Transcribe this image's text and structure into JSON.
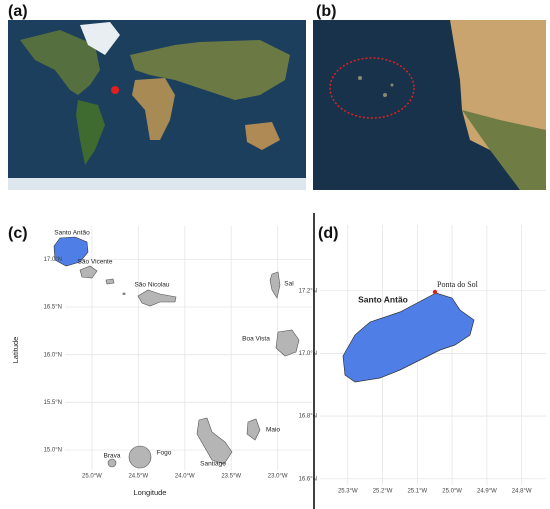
{
  "panels": [
    {
      "label": "(a)"
    },
    {
      "label": "(b)"
    },
    {
      "label": "(c)",
      "x_axis_label": "Longitude",
      "y_axis_label": "Latitude",
      "xlim": [
        -25.29,
        -22.63
      ],
      "ylim": [
        14.79,
        17.35
      ],
      "xticks": [
        {
          "value": -25.0,
          "label": "25.0°W"
        },
        {
          "value": -24.5,
          "label": "24.5°W"
        },
        {
          "value": -24.0,
          "label": "24.0°W"
        },
        {
          "value": -23.5,
          "label": "23.5°W"
        },
        {
          "value": -23.0,
          "label": "23.0°W"
        }
      ],
      "yticks": [
        {
          "value": 15.0,
          "label": "15.0°N"
        },
        {
          "value": 15.5,
          "label": "15.5°N"
        },
        {
          "value": 16.0,
          "label": "16.0°N"
        },
        {
          "value": 16.5,
          "label": "16.5°N"
        },
        {
          "value": 17.0,
          "label": "17.0°N"
        }
      ],
      "islands": [
        "Santo Antão",
        "São Vicente",
        "São Nicolau",
        "Sal",
        "Boa Vista",
        "Maio",
        "Santiago",
        "Fogo",
        "Brava"
      ]
    },
    {
      "label": "(d)",
      "xlim": [
        -25.38,
        -24.73
      ],
      "ylim": [
        16.58,
        17.41
      ],
      "xticks": [
        {
          "value": -25.3,
          "label": "25.3°W"
        },
        {
          "value": -25.2,
          "label": "25.2°W"
        },
        {
          "value": -25.1,
          "label": "25.1°W"
        },
        {
          "value": -25.0,
          "label": "25.0°W"
        },
        {
          "value": -24.9,
          "label": "24.9°W"
        },
        {
          "value": -24.8,
          "label": "24.8°W"
        }
      ],
      "yticks": [
        {
          "value": 16.6,
          "label": "16.6°N"
        },
        {
          "value": 16.8,
          "label": "16.8°N"
        },
        {
          "value": 17.0,
          "label": "17.0°N"
        },
        {
          "value": 17.2,
          "label": "17.2°N"
        }
      ],
      "islands": [
        "Santo Antão"
      ],
      "annotations": [
        "Ponta do Sol"
      ]
    }
  ]
}
